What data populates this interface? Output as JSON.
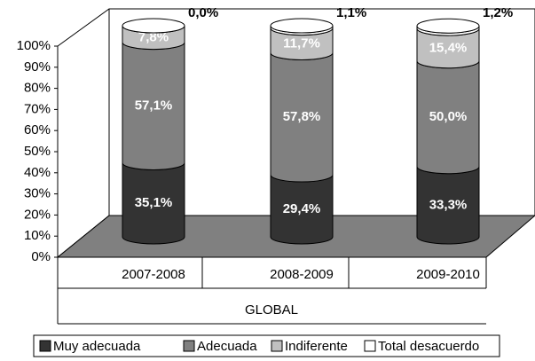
{
  "chart_data": {
    "type": "bar",
    "stacked": true,
    "categories": [
      "2007-2008",
      "2008-2009",
      "2009-2010"
    ],
    "x_label": "GLOBAL",
    "series": [
      {
        "name": "Muy adecuada",
        "color": "#333333",
        "values": [
          35.1,
          29.4,
          33.3
        ],
        "value_labels": [
          "35,1%",
          "29,4%",
          "33,3%"
        ]
      },
      {
        "name": "Adecuada",
        "color": "#808080",
        "values": [
          57.1,
          57.8,
          50.0
        ],
        "value_labels": [
          "57,1%",
          "57,8%",
          "50,0%"
        ]
      },
      {
        "name": "Indiferente",
        "color": "#c0c0c0",
        "values": [
          7.8,
          11.7,
          15.4
        ],
        "value_labels": [
          "7,8%",
          "11,7%",
          "15,4%"
        ]
      },
      {
        "name": "Total desacuerdo",
        "color": "#ffffff",
        "values": [
          0.0,
          1.1,
          1.2
        ],
        "value_labels": [
          "0,0%",
          "1,1%",
          "1,2%"
        ]
      }
    ],
    "ylim": [
      0,
      100
    ],
    "yticks": [
      {
        "value": 0,
        "label": "0%"
      },
      {
        "value": 10,
        "label": "10%"
      },
      {
        "value": 20,
        "label": "20%"
      },
      {
        "value": 30,
        "label": "30%"
      },
      {
        "value": 40,
        "label": "40%"
      },
      {
        "value": 50,
        "label": "50%"
      },
      {
        "value": 60,
        "label": "60%"
      },
      {
        "value": 70,
        "label": "70%"
      },
      {
        "value": 80,
        "label": "80%"
      },
      {
        "value": 90,
        "label": "90%"
      },
      {
        "value": 100,
        "label": "100%"
      }
    ],
    "legend": "bottom"
  }
}
